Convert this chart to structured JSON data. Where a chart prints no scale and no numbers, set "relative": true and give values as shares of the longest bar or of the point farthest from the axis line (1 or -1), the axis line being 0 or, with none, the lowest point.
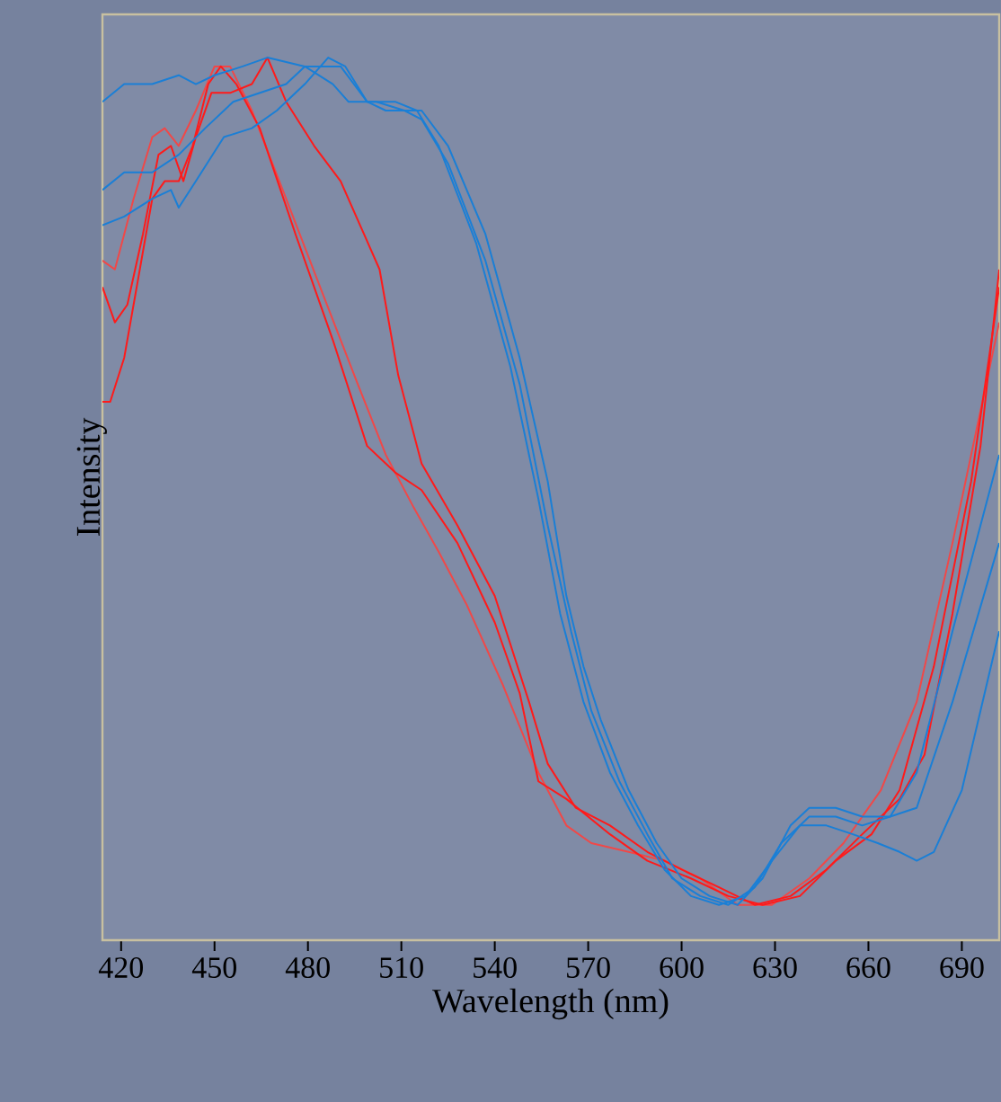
{
  "chart_data": {
    "type": "line",
    "relative": true,
    "xlabel": "Wavelength (nm)",
    "ylabel": "Intensity",
    "xlim": [
      414,
      702
    ],
    "xticks": [
      420,
      450,
      480,
      510,
      540,
      570,
      600,
      630,
      660,
      690
    ],
    "grid": false,
    "marker": "none",
    "line_style": "solid",
    "series": [
      {
        "color": "#f04848",
        "x": [
          414,
          418,
          424,
          430,
          434,
          438.5,
          444,
          450,
          455,
          462,
          473,
          485,
          496,
          505,
          514,
          522,
          531,
          542.5,
          554,
          563,
          571,
          583,
          594.5,
          606,
          618,
          629,
          641,
          652,
          664,
          675.5,
          687,
          696,
          702
        ],
        "values": [
          0.77,
          0.76,
          0.84,
          0.91,
          0.92,
          0.9,
          0.94,
          0.99,
          0.99,
          0.94,
          0.84,
          0.73,
          0.63,
          0.55,
          0.49,
          0.44,
          0.38,
          0.29,
          0.19,
          0.13,
          0.11,
          0.1,
          0.09,
          0.07,
          0.04,
          0.04,
          0.07,
          0.11,
          0.17,
          0.27,
          0.45,
          0.6,
          0.7
        ]
      },
      {
        "color": "#ff1a1a",
        "x": [
          414,
          418,
          422,
          427,
          432,
          436,
          440,
          444,
          449,
          455,
          462,
          467,
          473,
          482,
          490.5,
          498,
          503,
          509,
          516.5,
          528,
          540,
          551,
          557,
          566,
          577,
          589,
          600,
          612,
          623.5,
          635,
          646.5,
          658,
          670,
          678,
          687,
          696,
          702
        ],
        "values": [
          0.74,
          0.7,
          0.72,
          0.8,
          0.89,
          0.9,
          0.86,
          0.91,
          0.96,
          0.96,
          0.97,
          1.0,
          0.95,
          0.9,
          0.86,
          0.8,
          0.76,
          0.64,
          0.54,
          0.47,
          0.39,
          0.27,
          0.2,
          0.15,
          0.13,
          0.1,
          0.08,
          0.06,
          0.04,
          0.05,
          0.08,
          0.12,
          0.16,
          0.21,
          0.37,
          0.56,
          0.76
        ]
      },
      {
        "color": "#ff1a1a",
        "x": [
          414,
          416.5,
          421,
          426,
          430,
          434,
          438.5,
          443,
          448,
          452,
          457,
          464.5,
          476,
          488,
          499,
          508,
          516.5,
          528,
          540,
          548,
          554,
          563,
          577,
          589,
          603,
          615,
          626,
          638,
          649.5,
          661,
          670,
          681,
          693,
          702
        ],
        "values": [
          0.61,
          0.61,
          0.66,
          0.76,
          0.84,
          0.86,
          0.86,
          0.9,
          0.97,
          0.99,
          0.97,
          0.92,
          0.8,
          0.68,
          0.56,
          0.53,
          0.51,
          0.45,
          0.36,
          0.28,
          0.18,
          0.16,
          0.12,
          0.09,
          0.07,
          0.05,
          0.04,
          0.05,
          0.09,
          0.12,
          0.17,
          0.31,
          0.52,
          0.74
        ]
      },
      {
        "color": "#1a7fd6",
        "x": [
          414,
          421,
          430,
          438.5,
          444,
          450,
          459,
          467,
          479,
          490.5,
          499,
          505,
          511,
          516.5,
          525,
          537,
          548,
          557,
          563,
          568.5,
          574,
          583,
          592,
          600,
          609,
          618,
          626,
          635,
          641,
          649.5,
          658,
          667,
          675.5,
          687,
          702
        ],
        "values": [
          0.95,
          0.97,
          0.97,
          0.98,
          0.97,
          0.98,
          0.99,
          1.0,
          0.99,
          0.99,
          0.95,
          0.94,
          0.94,
          0.94,
          0.9,
          0.8,
          0.66,
          0.52,
          0.39,
          0.31,
          0.25,
          0.17,
          0.11,
          0.07,
          0.05,
          0.04,
          0.07,
          0.13,
          0.15,
          0.15,
          0.14,
          0.14,
          0.19,
          0.35,
          0.55
        ]
      },
      {
        "color": "#1a7fd6",
        "x": [
          414,
          421,
          430,
          438.5,
          447,
          456,
          464.5,
          473,
          479,
          488,
          493,
          502,
          511,
          516.5,
          525,
          537,
          548,
          557,
          564.5,
          571,
          580,
          589,
          597,
          606,
          615,
          623.5,
          632,
          641,
          649.5,
          658,
          667,
          675.5,
          687,
          702
        ],
        "values": [
          0.85,
          0.87,
          0.87,
          0.89,
          0.92,
          0.95,
          0.96,
          0.97,
          0.99,
          0.97,
          0.95,
          0.95,
          0.94,
          0.93,
          0.88,
          0.77,
          0.63,
          0.47,
          0.35,
          0.26,
          0.18,
          0.12,
          0.07,
          0.05,
          0.04,
          0.06,
          0.11,
          0.14,
          0.14,
          0.13,
          0.14,
          0.15,
          0.27,
          0.45
        ]
      },
      {
        "color": "#1a7fd6",
        "x": [
          414,
          421,
          430,
          436,
          438.5,
          444,
          453,
          462,
          470,
          479,
          486.5,
          492,
          499,
          508,
          515,
          522,
          534,
          545,
          554,
          561,
          568.5,
          577,
          586,
          594.5,
          603,
          612,
          620.5,
          629,
          638,
          646.5,
          655,
          663,
          670,
          675.5,
          681,
          690,
          702
        ],
        "values": [
          0.81,
          0.82,
          0.84,
          0.85,
          0.83,
          0.86,
          0.91,
          0.92,
          0.94,
          0.97,
          1.0,
          0.99,
          0.95,
          0.95,
          0.94,
          0.9,
          0.79,
          0.65,
          0.5,
          0.37,
          0.27,
          0.19,
          0.13,
          0.08,
          0.05,
          0.04,
          0.05,
          0.09,
          0.13,
          0.13,
          0.12,
          0.11,
          0.1,
          0.09,
          0.1,
          0.17,
          0.35
        ]
      }
    ]
  }
}
